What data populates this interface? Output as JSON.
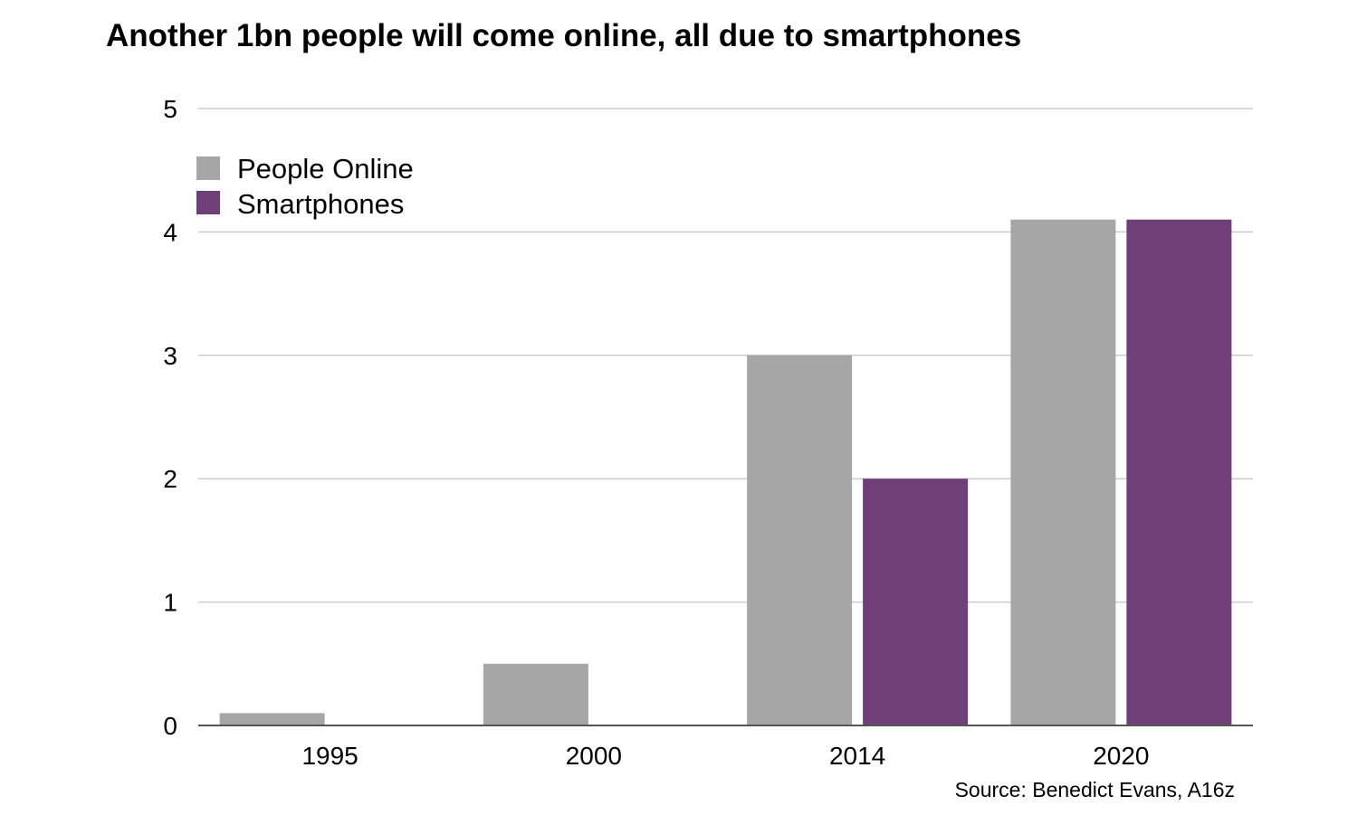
{
  "chart_data": {
    "type": "bar",
    "title": "Another 1bn people will come online, all due to smartphones",
    "source": "Source: Benedict Evans, A16z",
    "categories": [
      "1995",
      "2000",
      "2014",
      "2020"
    ],
    "series": [
      {
        "name": "People Online",
        "color": "#a6a6a6",
        "values": [
          0.1,
          0.5,
          3.0,
          4.1
        ]
      },
      {
        "name": "Smartphones",
        "color": "#6f3f78",
        "values": [
          0,
          0,
          2.0,
          4.1
        ]
      }
    ],
    "ylim": [
      0,
      5
    ],
    "yticks": [
      "0",
      "1",
      "2",
      "3",
      "4",
      "5"
    ],
    "grid": true,
    "legend_position": "top-left"
  }
}
